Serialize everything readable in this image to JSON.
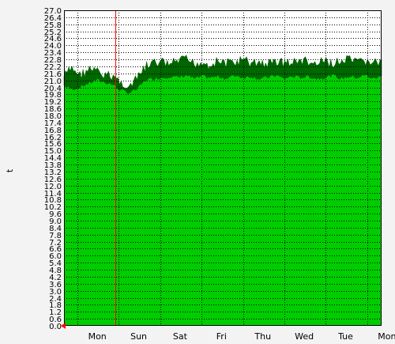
{
  "chart_data": {
    "type": "area",
    "title": "",
    "xlabel": "",
    "ylabel": "t",
    "ylim": [
      0.0,
      27.0
    ],
    "y_ticks": [
      "0.0",
      "0.6",
      "1.2",
      "1.8",
      "2.4",
      "3.0",
      "3.6",
      "4.2",
      "4.8",
      "5.4",
      "6.0",
      "6.6",
      "7.2",
      "7.8",
      "8.4",
      "9.0",
      "9.6",
      "10.2",
      "10.8",
      "11.4",
      "12.0",
      "12.6",
      "13.2",
      "13.8",
      "14.4",
      "15.0",
      "15.6",
      "16.2",
      "16.8",
      "17.4",
      "18.0",
      "18.6",
      "19.2",
      "19.8",
      "20.4",
      "21.0",
      "21.6",
      "22.2",
      "22.8",
      "23.4",
      "24.0",
      "24.6",
      "25.2",
      "25.8",
      "26.4",
      "27.0"
    ],
    "x_ticks": [
      "Mon",
      "Sun",
      "Sat",
      "Fri",
      "Thu",
      "Wed",
      "Tue",
      "Mon"
    ],
    "grid": true,
    "series": [
      {
        "values_min": [
          20.4,
          20.1,
          20.3,
          20.6,
          20.9,
          20.7,
          20.5,
          20.0,
          19.8,
          20.1,
          20.9,
          21.0,
          21.1,
          21.2,
          21.1,
          21.3,
          21.0,
          21.2,
          21.1,
          21.2,
          21.0,
          21.3,
          21.1,
          21.2,
          21.0,
          21.1,
          21.3,
          21.0,
          21.2,
          21.1,
          21.2,
          21.0,
          21.1,
          21.3,
          21.0,
          21.2,
          21.1,
          21.3,
          21.0,
          21.2
        ],
        "values_max": [
          21.8,
          22.5,
          21.9,
          22.4,
          22.2,
          21.8,
          21.9,
          21.2,
          20.8,
          21.6,
          22.6,
          22.9,
          23.0,
          22.8,
          23.1,
          23.2,
          22.9,
          23.0,
          22.8,
          23.1,
          22.9,
          23.0,
          23.2,
          22.9,
          23.0,
          22.8,
          23.1,
          23.0,
          22.9,
          23.2,
          23.0,
          22.8,
          23.1,
          22.9,
          23.0,
          23.2,
          22.9,
          23.1,
          23.0,
          22.9
        ]
      }
    ],
    "colors": {
      "fill": "#00cc00",
      "band": "#006600",
      "background": "#f3f3f3",
      "plot_background": "#ffffff",
      "grid": "#000000",
      "marker_line": "#ff0000"
    }
  }
}
